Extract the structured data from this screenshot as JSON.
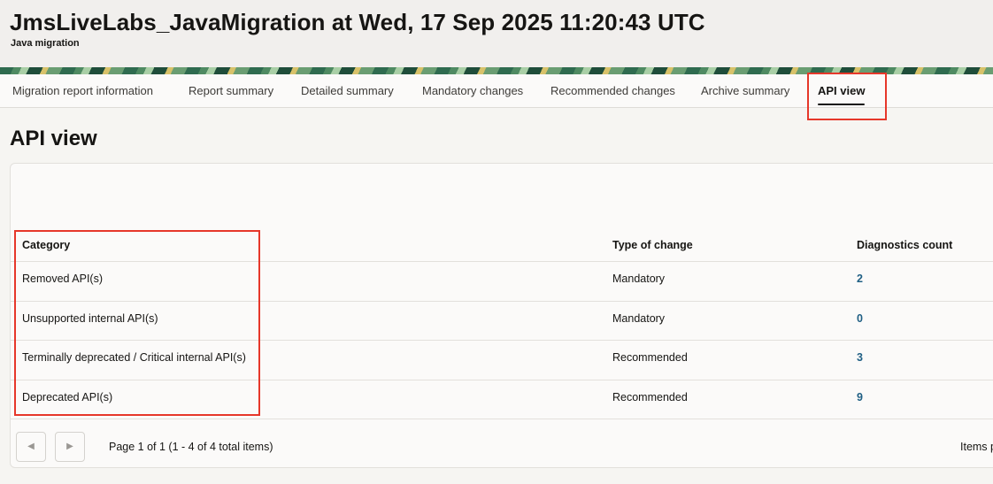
{
  "header": {
    "title": "JmsLiveLabs_JavaMigration at Wed, 17 Sep 2025 11:20:43 UTC",
    "subtitle": "Java migration"
  },
  "tabs": [
    {
      "label": "Migration report information"
    },
    {
      "label": "Report summary"
    },
    {
      "label": "Detailed summary"
    },
    {
      "label": "Mandatory changes"
    },
    {
      "label": "Recommended changes"
    },
    {
      "label": "Archive summary"
    },
    {
      "label": "API view",
      "active": true
    }
  ],
  "page": {
    "heading": "API view"
  },
  "table": {
    "columns": [
      "Category",
      "Type of change",
      "Diagnostics count"
    ],
    "rows": [
      {
        "category": "Removed API(s)",
        "type": "Mandatory",
        "count": "2"
      },
      {
        "category": "Unsupported internal API(s)",
        "type": "Mandatory",
        "count": "0"
      },
      {
        "category": "Terminally deprecated / Critical internal API(s)",
        "type": "Recommended",
        "count": "3"
      },
      {
        "category": "Deprecated API(s)",
        "type": "Recommended",
        "count": "9"
      }
    ]
  },
  "pagination": {
    "prev_icon": "chevron-left-icon",
    "next_icon": "chevron-right-icon",
    "status": "Page 1 of 1 (1 - 4 of 4 total items)",
    "items_per_page_label": "Items p"
  },
  "colors": {
    "accent_highlight": "#e6372a",
    "link": "#1f5f84"
  }
}
